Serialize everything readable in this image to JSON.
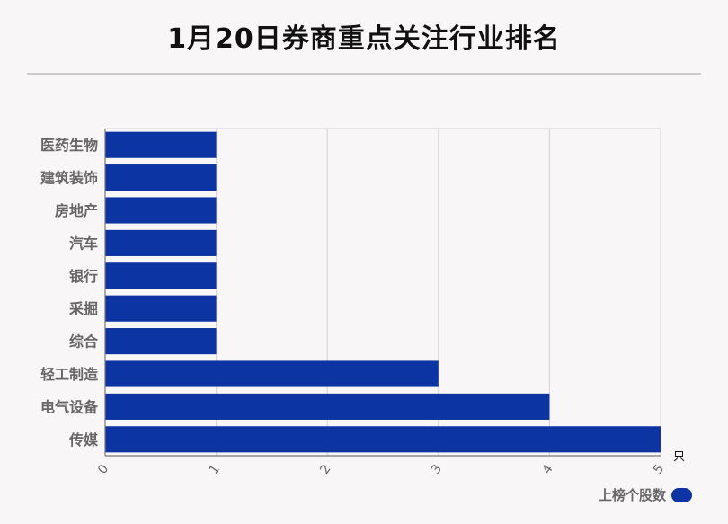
{
  "title": "1月20日券商重点关注行业排名",
  "unit": "只",
  "colors": {
    "bar": "#0c34a2",
    "grid": "#d6d2d4",
    "axis": "#777777",
    "background": "#f9f6f8"
  },
  "legend": {
    "label": "上榜个股数",
    "position": "bottom-right"
  },
  "chart_data": {
    "type": "bar",
    "orientation": "horizontal",
    "categories": [
      "医药生物",
      "建筑装饰",
      "房地产",
      "汽车",
      "银行",
      "采掘",
      "综合",
      "轻工制造",
      "电气设备",
      "传媒"
    ],
    "series": [
      {
        "name": "上榜个股数",
        "values": [
          1,
          1,
          1,
          1,
          1,
          1,
          1,
          3,
          4,
          5
        ]
      }
    ],
    "xlim": [
      0,
      5
    ],
    "xticks": [
      "0",
      "1",
      "2",
      "3",
      "4",
      "5"
    ],
    "xlabel": "只",
    "ylabel": "",
    "grid": true
  }
}
